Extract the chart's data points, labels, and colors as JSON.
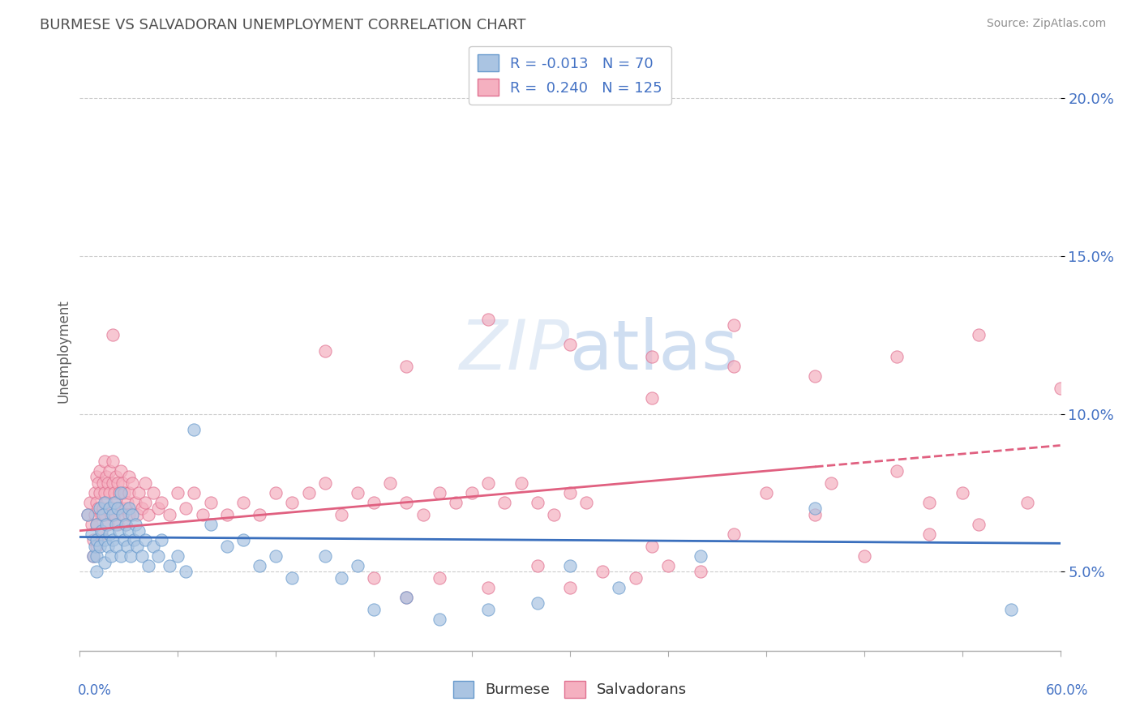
{
  "title": "BURMESE VS SALVADORAN UNEMPLOYMENT CORRELATION CHART",
  "source": "Source: ZipAtlas.com",
  "ylabel": "Unemployment",
  "burmese_R": -0.013,
  "burmese_N": 70,
  "salvadoran_R": 0.24,
  "salvadoran_N": 125,
  "burmese_color": "#aac4e2",
  "burmese_edge_color": "#6699cc",
  "salvadoran_color": "#f5b0c0",
  "salvadoran_edge_color": "#e07090",
  "burmese_line_color": "#3a6fbd",
  "salvadoran_line_color": "#e06080",
  "title_color": "#505050",
  "source_color": "#909090",
  "label_color": "#4472c4",
  "xmin": 0.0,
  "xmax": 0.6,
  "ymin": 0.025,
  "ymax": 0.215,
  "yticks": [
    0.05,
    0.1,
    0.15,
    0.2
  ],
  "ytick_labels": [
    "5.0%",
    "10.0%",
    "15.0%",
    "20.0%"
  ],
  "burmese_trend_x": [
    0.0,
    0.6
  ],
  "burmese_trend_y": [
    0.061,
    0.059
  ],
  "salvadoran_trend_x": [
    0.0,
    0.6
  ],
  "salvadoran_trend_y": [
    0.063,
    0.09
  ],
  "burmese_points": [
    [
      0.005,
      0.068
    ],
    [
      0.007,
      0.062
    ],
    [
      0.008,
      0.055
    ],
    [
      0.009,
      0.058
    ],
    [
      0.01,
      0.065
    ],
    [
      0.01,
      0.06
    ],
    [
      0.01,
      0.055
    ],
    [
      0.01,
      0.05
    ],
    [
      0.012,
      0.07
    ],
    [
      0.012,
      0.058
    ],
    [
      0.013,
      0.063
    ],
    [
      0.014,
      0.068
    ],
    [
      0.015,
      0.072
    ],
    [
      0.015,
      0.06
    ],
    [
      0.015,
      0.053
    ],
    [
      0.016,
      0.065
    ],
    [
      0.017,
      0.058
    ],
    [
      0.018,
      0.07
    ],
    [
      0.018,
      0.062
    ],
    [
      0.019,
      0.055
    ],
    [
      0.02,
      0.068
    ],
    [
      0.02,
      0.06
    ],
    [
      0.021,
      0.072
    ],
    [
      0.022,
      0.065
    ],
    [
      0.022,
      0.058
    ],
    [
      0.023,
      0.07
    ],
    [
      0.024,
      0.063
    ],
    [
      0.025,
      0.075
    ],
    [
      0.025,
      0.055
    ],
    [
      0.026,
      0.068
    ],
    [
      0.027,
      0.06
    ],
    [
      0.028,
      0.065
    ],
    [
      0.029,
      0.058
    ],
    [
      0.03,
      0.07
    ],
    [
      0.03,
      0.063
    ],
    [
      0.031,
      0.055
    ],
    [
      0.032,
      0.068
    ],
    [
      0.033,
      0.06
    ],
    [
      0.034,
      0.065
    ],
    [
      0.035,
      0.058
    ],
    [
      0.036,
      0.063
    ],
    [
      0.038,
      0.055
    ],
    [
      0.04,
      0.06
    ],
    [
      0.042,
      0.052
    ],
    [
      0.045,
      0.058
    ],
    [
      0.048,
      0.055
    ],
    [
      0.05,
      0.06
    ],
    [
      0.055,
      0.052
    ],
    [
      0.06,
      0.055
    ],
    [
      0.065,
      0.05
    ],
    [
      0.07,
      0.095
    ],
    [
      0.08,
      0.065
    ],
    [
      0.09,
      0.058
    ],
    [
      0.1,
      0.06
    ],
    [
      0.11,
      0.052
    ],
    [
      0.12,
      0.055
    ],
    [
      0.13,
      0.048
    ],
    [
      0.15,
      0.055
    ],
    [
      0.16,
      0.048
    ],
    [
      0.17,
      0.052
    ],
    [
      0.18,
      0.038
    ],
    [
      0.2,
      0.042
    ],
    [
      0.22,
      0.035
    ],
    [
      0.25,
      0.038
    ],
    [
      0.28,
      0.04
    ],
    [
      0.3,
      0.052
    ],
    [
      0.33,
      0.045
    ],
    [
      0.38,
      0.055
    ],
    [
      0.45,
      0.07
    ],
    [
      0.57,
      0.038
    ]
  ],
  "salvadoran_points": [
    [
      0.005,
      0.068
    ],
    [
      0.006,
      0.072
    ],
    [
      0.007,
      0.065
    ],
    [
      0.008,
      0.06
    ],
    [
      0.008,
      0.055
    ],
    [
      0.009,
      0.075
    ],
    [
      0.009,
      0.068
    ],
    [
      0.01,
      0.08
    ],
    [
      0.01,
      0.072
    ],
    [
      0.01,
      0.065
    ],
    [
      0.01,
      0.058
    ],
    [
      0.011,
      0.078
    ],
    [
      0.011,
      0.07
    ],
    [
      0.012,
      0.082
    ],
    [
      0.012,
      0.075
    ],
    [
      0.013,
      0.068
    ],
    [
      0.013,
      0.062
    ],
    [
      0.014,
      0.078
    ],
    [
      0.014,
      0.07
    ],
    [
      0.015,
      0.085
    ],
    [
      0.015,
      0.075
    ],
    [
      0.015,
      0.068
    ],
    [
      0.016,
      0.08
    ],
    [
      0.016,
      0.072
    ],
    [
      0.017,
      0.078
    ],
    [
      0.017,
      0.065
    ],
    [
      0.018,
      0.082
    ],
    [
      0.018,
      0.075
    ],
    [
      0.019,
      0.068
    ],
    [
      0.02,
      0.085
    ],
    [
      0.02,
      0.078
    ],
    [
      0.02,
      0.07
    ],
    [
      0.021,
      0.075
    ],
    [
      0.021,
      0.068
    ],
    [
      0.022,
      0.08
    ],
    [
      0.022,
      0.072
    ],
    [
      0.023,
      0.078
    ],
    [
      0.023,
      0.065
    ],
    [
      0.024,
      0.075
    ],
    [
      0.025,
      0.082
    ],
    [
      0.025,
      0.07
    ],
    [
      0.026,
      0.078
    ],
    [
      0.026,
      0.068
    ],
    [
      0.027,
      0.075
    ],
    [
      0.028,
      0.07
    ],
    [
      0.028,
      0.065
    ],
    [
      0.029,
      0.072
    ],
    [
      0.03,
      0.08
    ],
    [
      0.03,
      0.075
    ],
    [
      0.03,
      0.068
    ],
    [
      0.032,
      0.078
    ],
    [
      0.034,
      0.072
    ],
    [
      0.035,
      0.068
    ],
    [
      0.036,
      0.075
    ],
    [
      0.038,
      0.07
    ],
    [
      0.04,
      0.078
    ],
    [
      0.04,
      0.072
    ],
    [
      0.042,
      0.068
    ],
    [
      0.045,
      0.075
    ],
    [
      0.048,
      0.07
    ],
    [
      0.05,
      0.072
    ],
    [
      0.055,
      0.068
    ],
    [
      0.06,
      0.075
    ],
    [
      0.065,
      0.07
    ],
    [
      0.07,
      0.075
    ],
    [
      0.075,
      0.068
    ],
    [
      0.08,
      0.072
    ],
    [
      0.09,
      0.068
    ],
    [
      0.1,
      0.072
    ],
    [
      0.11,
      0.068
    ],
    [
      0.12,
      0.075
    ],
    [
      0.13,
      0.072
    ],
    [
      0.14,
      0.075
    ],
    [
      0.15,
      0.078
    ],
    [
      0.16,
      0.068
    ],
    [
      0.17,
      0.075
    ],
    [
      0.18,
      0.072
    ],
    [
      0.19,
      0.078
    ],
    [
      0.2,
      0.072
    ],
    [
      0.21,
      0.068
    ],
    [
      0.22,
      0.075
    ],
    [
      0.23,
      0.072
    ],
    [
      0.24,
      0.075
    ],
    [
      0.25,
      0.078
    ],
    [
      0.26,
      0.072
    ],
    [
      0.27,
      0.078
    ],
    [
      0.28,
      0.072
    ],
    [
      0.29,
      0.068
    ],
    [
      0.3,
      0.075
    ],
    [
      0.31,
      0.072
    ],
    [
      0.18,
      0.048
    ],
    [
      0.2,
      0.042
    ],
    [
      0.22,
      0.048
    ],
    [
      0.25,
      0.045
    ],
    [
      0.28,
      0.052
    ],
    [
      0.3,
      0.045
    ],
    [
      0.32,
      0.05
    ],
    [
      0.34,
      0.048
    ],
    [
      0.36,
      0.052
    ],
    [
      0.38,
      0.05
    ],
    [
      0.02,
      0.125
    ],
    [
      0.15,
      0.12
    ],
    [
      0.2,
      0.115
    ],
    [
      0.25,
      0.13
    ],
    [
      0.3,
      0.122
    ],
    [
      0.35,
      0.118
    ],
    [
      0.4,
      0.128
    ],
    [
      0.35,
      0.105
    ],
    [
      0.4,
      0.115
    ],
    [
      0.45,
      0.112
    ],
    [
      0.5,
      0.118
    ],
    [
      0.55,
      0.125
    ],
    [
      0.6,
      0.108
    ],
    [
      0.35,
      0.058
    ],
    [
      0.4,
      0.062
    ],
    [
      0.45,
      0.068
    ],
    [
      0.48,
      0.055
    ],
    [
      0.52,
      0.062
    ],
    [
      0.55,
      0.065
    ],
    [
      0.58,
      0.072
    ],
    [
      0.42,
      0.075
    ],
    [
      0.46,
      0.078
    ],
    [
      0.5,
      0.082
    ],
    [
      0.52,
      0.072
    ],
    [
      0.54,
      0.075
    ]
  ]
}
